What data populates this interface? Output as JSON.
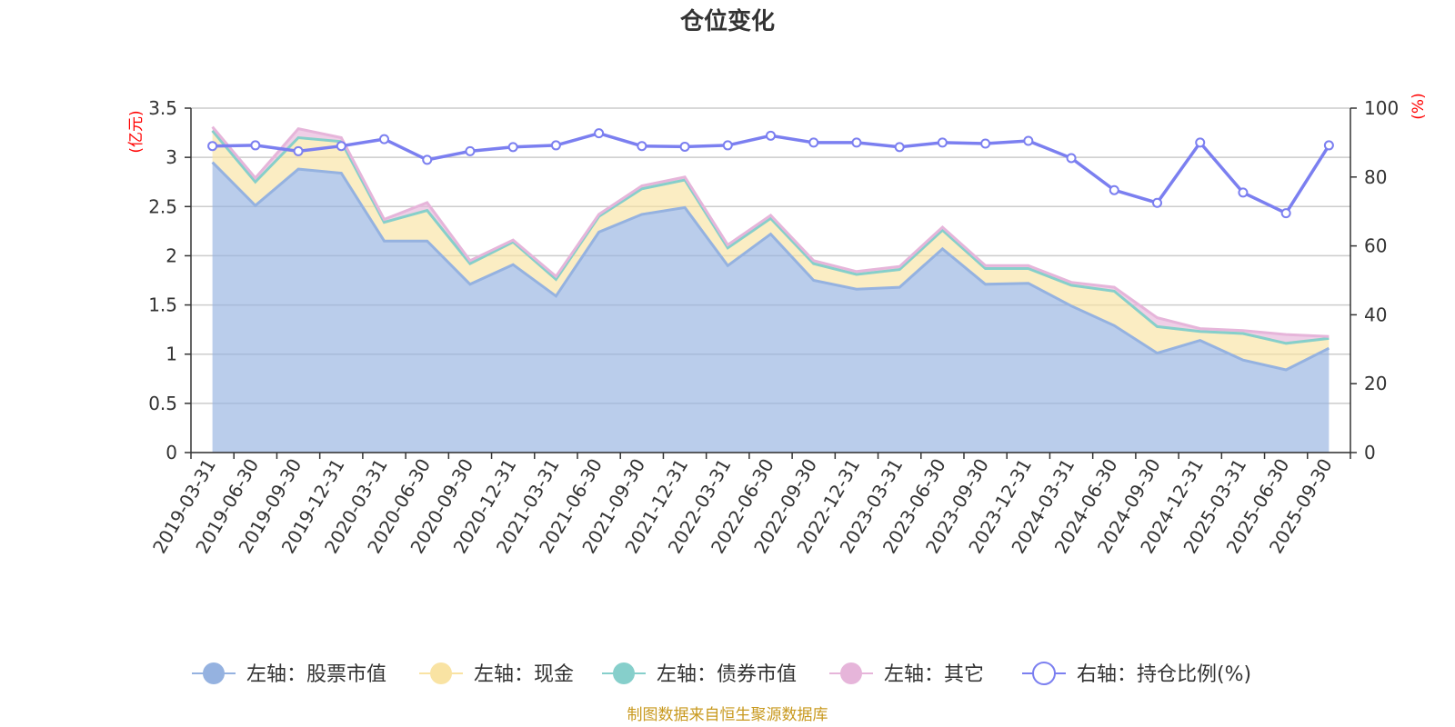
{
  "chart_data": {
    "type": "area",
    "title": "仓位变化",
    "source_note": "制图数据来自恒生聚源数据库",
    "left_axis": {
      "unit": "(亿元)",
      "ylim": [
        0,
        3.5
      ],
      "ticks": [
        "0",
        "0.5",
        "1",
        "1.5",
        "2",
        "2.5",
        "3",
        "3.5"
      ]
    },
    "right_axis": {
      "unit": "(%)",
      "ylim": [
        0,
        100
      ],
      "ticks": [
        "0",
        "20",
        "40",
        "60",
        "80",
        "100"
      ]
    },
    "grid": true,
    "legend_position": "bottom",
    "categories": [
      "2019-03-31",
      "2019-06-30",
      "2019-09-30",
      "2019-12-31",
      "2020-03-31",
      "2020-06-30",
      "2020-09-30",
      "2020-12-31",
      "2021-03-31",
      "2021-06-30",
      "2021-09-30",
      "2021-12-31",
      "2022-03-31",
      "2022-06-30",
      "2022-09-30",
      "2022-12-31",
      "2023-03-31",
      "2023-06-30",
      "2023-09-30",
      "2023-12-31",
      "2024-03-31",
      "2024-06-30",
      "2024-09-30",
      "2024-12-31",
      "2025-03-31",
      "2025-06-30",
      "2025-09-30"
    ],
    "series": [
      {
        "name": "左轴：股票市值",
        "axis": "left",
        "color": "#95b2e0",
        "values": [
          2.95,
          2.51,
          2.88,
          2.84,
          2.15,
          2.15,
          1.71,
          1.91,
          1.59,
          2.24,
          2.42,
          2.49,
          1.9,
          2.22,
          1.75,
          1.66,
          1.68,
          2.07,
          1.71,
          1.72,
          1.49,
          1.29,
          1.01,
          1.14,
          0.94,
          0.84,
          1.06
        ]
      },
      {
        "name": "左轴：现金",
        "axis": "left",
        "color": "#f9e3a3",
        "values": [
          0.32,
          0.24,
          0.32,
          0.32,
          0.19,
          0.31,
          0.21,
          0.23,
          0.17,
          0.16,
          0.26,
          0.28,
          0.18,
          0.16,
          0.17,
          0.15,
          0.18,
          0.19,
          0.16,
          0.15,
          0.21,
          0.35,
          0.27,
          0.09,
          0.27,
          0.27,
          0.1
        ]
      },
      {
        "name": "左轴：债券市值",
        "axis": "left",
        "color": "#86cfcb",
        "values": [
          0,
          0,
          0,
          0,
          0,
          0,
          0,
          0,
          0,
          0,
          0,
          0,
          0,
          0,
          0,
          0,
          0,
          0,
          0,
          0,
          0,
          0,
          0,
          0,
          0,
          0,
          0
        ]
      },
      {
        "name": "左轴：其它",
        "axis": "left",
        "color": "#e6b5da",
        "values": [
          0.04,
          0.04,
          0.09,
          0.04,
          0.03,
          0.08,
          0.03,
          0.02,
          0.03,
          0.02,
          0.03,
          0.03,
          0.03,
          0.03,
          0.03,
          0.03,
          0.03,
          0.03,
          0.03,
          0.03,
          0.03,
          0.04,
          0.09,
          0.03,
          0.03,
          0.09,
          0.02
        ]
      },
      {
        "name": "右轴：持仓比例(%)",
        "axis": "right",
        "color": "#7b7ff0",
        "values": [
          89.0,
          89.2,
          87.5,
          89.0,
          91.0,
          85.0,
          87.5,
          88.7,
          89.2,
          92.7,
          89.0,
          88.8,
          89.2,
          92.0,
          90.0,
          90.0,
          88.7,
          90.0,
          89.7,
          90.5,
          85.5,
          76.2,
          72.5,
          90.0,
          75.5,
          69.5,
          89.2
        ]
      }
    ]
  }
}
